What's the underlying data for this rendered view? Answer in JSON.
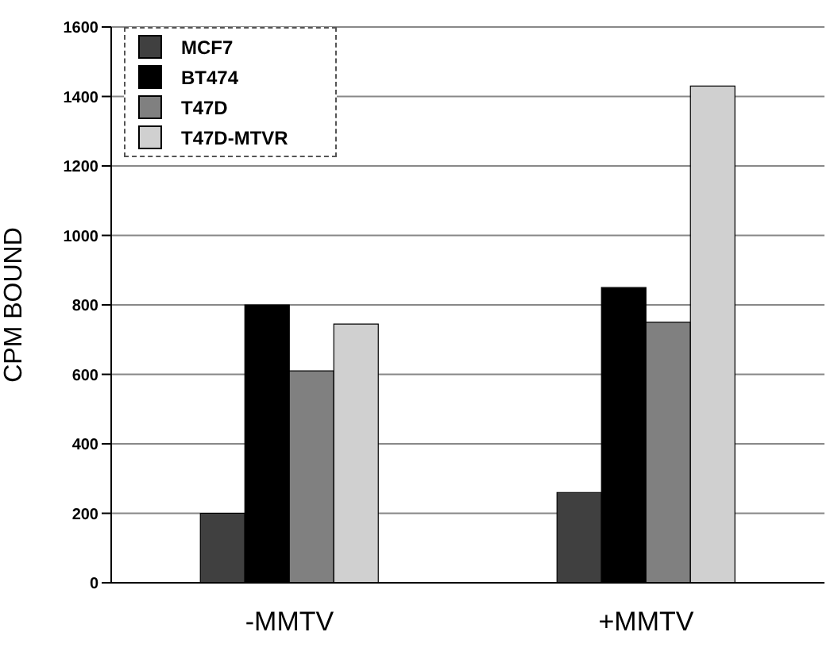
{
  "chart_data": {
    "type": "bar",
    "ylabel": "CPM BOUND",
    "categories": [
      "-MMTV",
      "+MMTV"
    ],
    "series": [
      {
        "name": "MCF7",
        "color": "#404040",
        "values": [
          200,
          260
        ]
      },
      {
        "name": "BT474",
        "color": "#000000",
        "values": [
          800,
          850
        ]
      },
      {
        "name": "T47D",
        "color": "#808080",
        "values": [
          610,
          750
        ]
      },
      {
        "name": "T47D-MTVR",
        "color": "#d0d0d0",
        "values": [
          745,
          1430
        ]
      }
    ],
    "ylim": [
      0,
      1600
    ],
    "yticks": [
      0,
      200,
      400,
      600,
      800,
      1000,
      1200,
      1400,
      1600
    ],
    "grid": "y",
    "legend": "top left"
  }
}
